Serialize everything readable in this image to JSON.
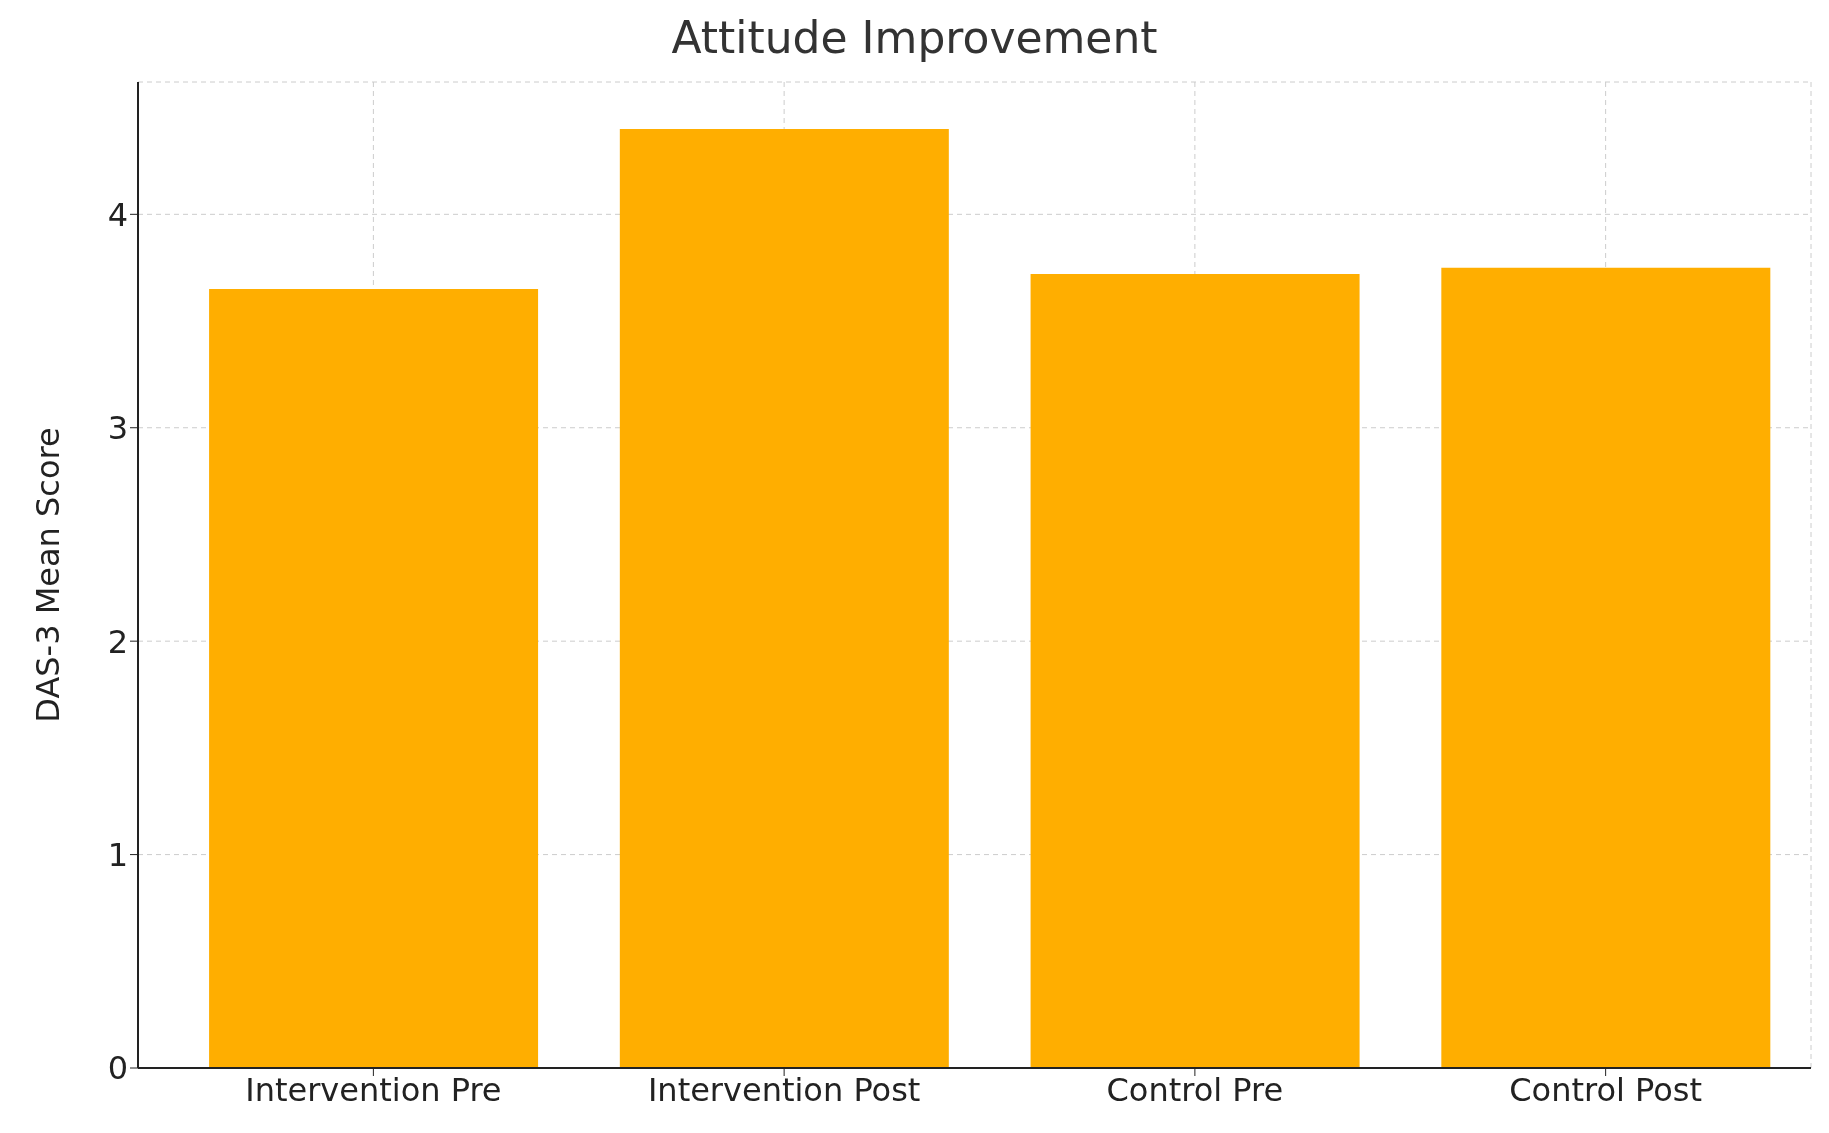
{
  "chart_data": {
    "type": "bar",
    "title": "Attitude Improvement",
    "ylabel": "DAS-3 Mean Score",
    "categories": [
      "Intervention Pre",
      "Intervention Post",
      "Control Pre",
      "Control Post"
    ],
    "values": [
      3.65,
      4.4,
      3.72,
      3.75
    ],
    "color": "#ffae00",
    "ylim": [
      0,
      4.62
    ],
    "yticks": [
      0,
      1,
      2,
      3,
      4
    ],
    "grid": true
  }
}
